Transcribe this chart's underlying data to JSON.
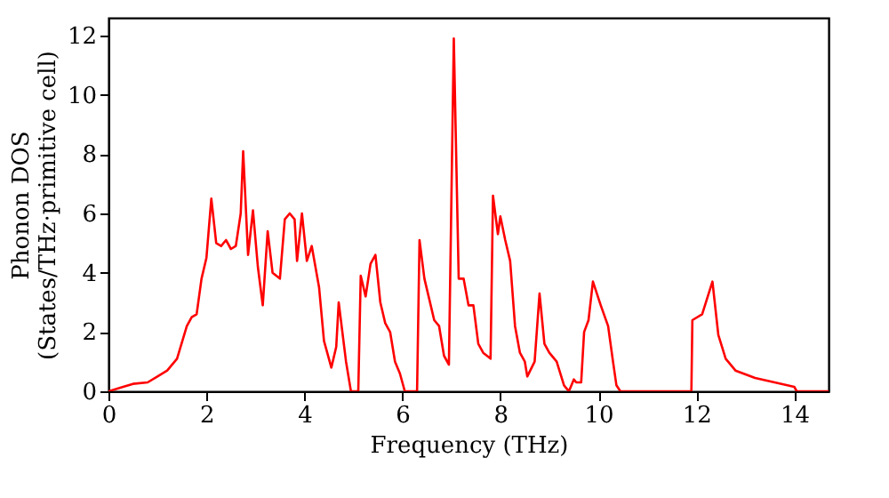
{
  "chart_data": {
    "type": "line",
    "xlabel": "Frequency (THz)",
    "ylabel": "Phonon DOS\n(States/THz·primitive cell)",
    "xlim": [
      0,
      14.7
    ],
    "ylim": [
      0,
      12.6
    ],
    "xticks": [
      0,
      2,
      4,
      6,
      8,
      10,
      12,
      14
    ],
    "yticks": [
      0,
      2,
      4,
      6,
      8,
      10,
      12
    ],
    "grid": false,
    "marker": "none",
    "line_style": "solid",
    "series": [
      {
        "color": "#ff0000",
        "x": [
          0,
          0.3,
          0.5,
          0.8,
          1.0,
          1.2,
          1.4,
          1.6,
          1.7,
          1.8,
          1.9,
          2.0,
          2.1,
          2.2,
          2.3,
          2.4,
          2.5,
          2.6,
          2.7,
          2.75,
          2.85,
          2.95,
          3.05,
          3.15,
          3.25,
          3.35,
          3.5,
          3.6,
          3.7,
          3.8,
          3.85,
          3.95,
          4.05,
          4.15,
          4.3,
          4.4,
          4.55,
          4.65,
          4.7,
          4.85,
          4.95,
          5.1,
          5.15,
          5.25,
          5.35,
          5.45,
          5.55,
          5.65,
          5.75,
          5.85,
          5.95,
          6.05,
          6.3,
          6.35,
          6.45,
          6.55,
          6.65,
          6.75,
          6.85,
          6.95,
          7.05,
          7.15,
          7.25,
          7.35,
          7.45,
          7.55,
          7.65,
          7.8,
          7.85,
          7.95,
          8.0,
          8.1,
          8.2,
          8.3,
          8.4,
          8.5,
          8.55,
          8.7,
          8.8,
          8.9,
          9.0,
          9.15,
          9.3,
          9.4,
          9.5,
          9.55,
          9.65,
          9.71,
          9.8,
          9.89,
          10.05,
          10.2,
          10.3,
          10.37,
          10.45,
          11.9,
          11.92,
          12.12,
          12.33,
          12.45,
          12.6,
          12.8,
          13.2,
          13.6,
          14.0,
          14.05,
          14.7
        ],
        "values": [
          0,
          0.15,
          0.25,
          0.3,
          0.5,
          0.7,
          1.1,
          2.2,
          2.5,
          2.6,
          3.8,
          4.5,
          6.5,
          5.0,
          4.9,
          5.1,
          4.8,
          4.9,
          6.0,
          8.1,
          4.6,
          6.1,
          4.2,
          2.9,
          5.4,
          4.0,
          3.8,
          5.8,
          6.0,
          5.8,
          4.4,
          6.0,
          4.4,
          4.9,
          3.5,
          1.7,
          0.8,
          1.5,
          3.0,
          1.0,
          0,
          0,
          3.9,
          3.2,
          4.3,
          4.6,
          3.0,
          2.3,
          2.0,
          1.0,
          0.6,
          0,
          0,
          5.1,
          3.8,
          3.1,
          2.4,
          2.2,
          1.2,
          0.9,
          11.9,
          3.8,
          3.8,
          2.9,
          2.9,
          1.6,
          1.3,
          1.1,
          6.6,
          5.3,
          5.9,
          5.1,
          4.4,
          2.2,
          1.3,
          1.0,
          0.5,
          1.0,
          3.3,
          1.6,
          1.3,
          1.0,
          0.2,
          0,
          0.4,
          0.3,
          0.3,
          2.0,
          2.4,
          3.7,
          2.9,
          2.2,
          1.0,
          0.2,
          0,
          0,
          2.4,
          2.6,
          3.7,
          1.9,
          1.1,
          0.7,
          0.45,
          0.3,
          0.15,
          0,
          0
        ]
      }
    ]
  }
}
